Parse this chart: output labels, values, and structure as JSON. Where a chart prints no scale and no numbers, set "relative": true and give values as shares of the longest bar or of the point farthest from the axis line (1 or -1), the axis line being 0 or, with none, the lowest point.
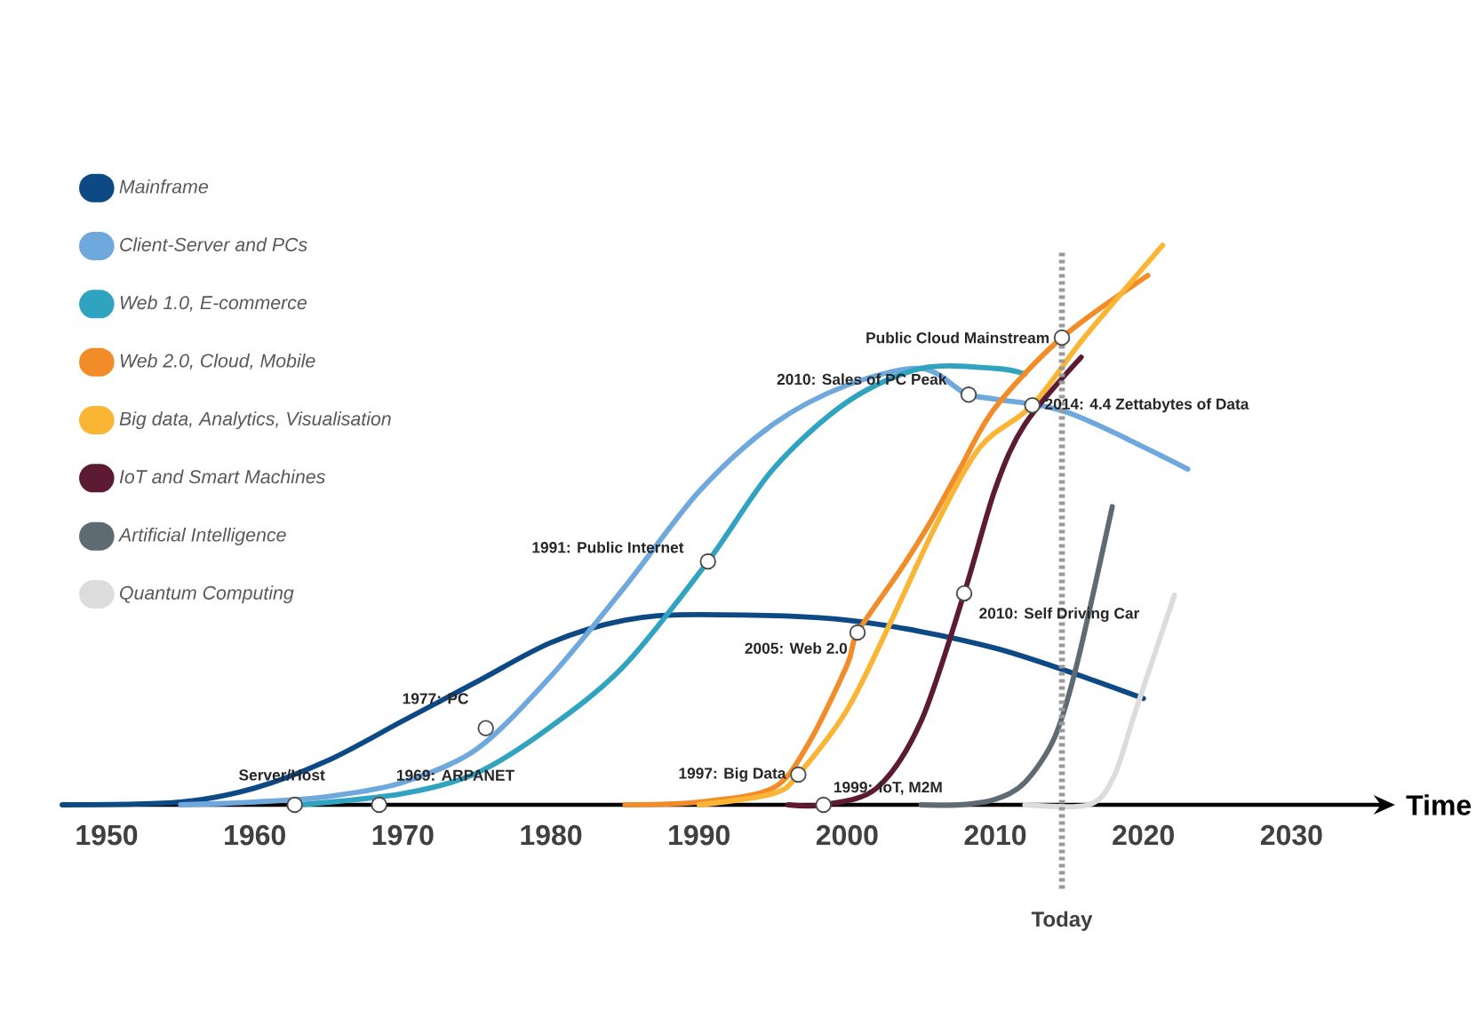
{
  "chart_data": {
    "type": "line",
    "relative": true,
    "xlabel": "Time",
    "xlim": [
      1947,
      2037
    ],
    "xticks": [
      1950,
      1960,
      1970,
      1980,
      1990,
      2000,
      2010,
      2020,
      2030
    ],
    "tick_labels": "x",
    "legend": "top left",
    "series": [
      {
        "name": "Mainframe",
        "color": "#0d4a85",
        "x": [
          1947,
          1955,
          1960,
          1965,
          1970,
          1975,
          1980,
          1985,
          1990,
          2000,
          2010,
          2020
        ],
        "values": [
          0,
          0.005,
          0.03,
          0.08,
          0.15,
          0.22,
          0.29,
          0.33,
          0.34,
          0.33,
          0.28,
          0.19
        ]
      },
      {
        "name": "Client-Server and PCs",
        "color": "#6fa8dc",
        "x": [
          1955,
          1960,
          1965,
          1970,
          1975,
          1980,
          1985,
          1990,
          1995,
          2000,
          2005,
          2008,
          2010,
          2015,
          2023
        ],
        "values": [
          0,
          0.005,
          0.015,
          0.04,
          0.1,
          0.23,
          0.39,
          0.56,
          0.68,
          0.75,
          0.78,
          0.735,
          0.725,
          0.7,
          0.6
        ]
      },
      {
        "name": "Web 1.0, E-commerce",
        "color": "#2fa3c0",
        "x": [
          1963,
          1970,
          1975,
          1980,
          1985,
          1990.6,
          1995,
          2000,
          2005,
          2010,
          2012
        ],
        "values": [
          0,
          0.02,
          0.057,
          0.14,
          0.25,
          0.435,
          0.6,
          0.72,
          0.78,
          0.78,
          0.77
        ]
      },
      {
        "name": "Web 2.0, Cloud, Mobile",
        "color": "#f28c28",
        "x": [
          1985,
          1990,
          1995,
          1997.4,
          2000,
          2000.7,
          2003.5,
          2005.5,
          2007.6,
          2010,
          2014.5,
          2020.3
        ],
        "values": [
          0,
          0.005,
          0.03,
          0.11,
          0.25,
          0.308,
          0.416,
          0.5,
          0.6,
          0.71,
          0.835,
          0.946
        ]
      },
      {
        "name": "Big data, Analytics, Visualisation",
        "color": "#fbb534",
        "x": [
          1990,
          1995,
          1996.7,
          2000,
          2003,
          2006,
          2009,
          2012.5,
          2016,
          2021.3
        ],
        "values": [
          0,
          0.02,
          0.054,
          0.17,
          0.33,
          0.5,
          0.64,
          0.714,
          0.835,
          1
        ]
      },
      {
        "name": "IoT and Smart Machines",
        "color": "#5c1a33",
        "x": [
          1996,
          1998.4,
          2002,
          2005,
          2007.9,
          2010,
          2012,
          2015.8
        ],
        "values": [
          0,
          0,
          0.03,
          0.15,
          0.378,
          0.565,
          0.68,
          0.8
        ]
      },
      {
        "name": "Artificial Intelligence",
        "color": "#5f6b73",
        "x": [
          2005,
          2007.6,
          2010,
          2012,
          2014,
          2015.5,
          2017.9
        ],
        "values": [
          0,
          0,
          0.01,
          0.04,
          0.12,
          0.25,
          0.533
        ]
      },
      {
        "name": "Quantum Computing",
        "color": "#dcdcdc",
        "x": [
          2012,
          2016.3,
          2018,
          2019.5,
          2022.1
        ],
        "values": [
          0,
          0,
          0.05,
          0.17,
          0.375
        ]
      }
    ],
    "annotations": [
      {
        "text": "Server/Host",
        "x": 1962.7,
        "y": 0
      },
      {
        "text": "1969: ARPANET",
        "x": 1968.4,
        "y": 0
      },
      {
        "text": "1977: PC",
        "x": 1975.6,
        "y": 0.137
      },
      {
        "text": "1991: Public Internet",
        "x": 1990.6,
        "y": 0.435
      },
      {
        "text": "2005: Web 2.0",
        "x": 2000.7,
        "y": 0.308
      },
      {
        "text": "2010: Sales of PC Peak",
        "x": 2008.2,
        "y": 0.733
      },
      {
        "text": "2014: 4.4 Zettabytes of Data",
        "x": 2012.5,
        "y": 0.714
      },
      {
        "text": "Public Cloud Mainstream",
        "x": 2014.5,
        "y": 0.835
      },
      {
        "text": "1997: Big Data",
        "x": 1996.7,
        "y": 0.054
      },
      {
        "text": "1999: IoT, M2M",
        "x": 1998.4,
        "y": 0
      },
      {
        "text": "2010: Self Driving Car",
        "x": 2007.9,
        "y": 0.378
      }
    ],
    "ref_lines": [
      {
        "axis": "x",
        "value": 2014.5,
        "label": "Today",
        "color": "#999999",
        "line_style": "dotted"
      }
    ]
  }
}
